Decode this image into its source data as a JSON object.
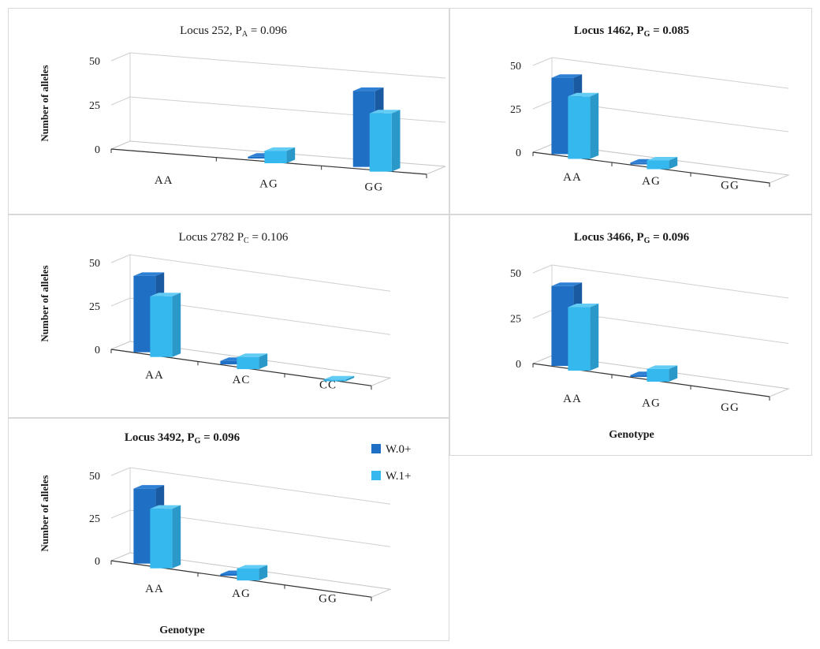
{
  "colors": {
    "w0": "#1f6fc4",
    "w0_side": "#1a5aa0",
    "w0_top": "#2e80d4",
    "w1": "#35b8ee",
    "w1_side": "#2a98c8",
    "w1_top": "#63ccf4"
  },
  "legend": {
    "w0": "W.0+",
    "w1": "W.1+"
  },
  "chart_data": [
    {
      "type": "bar",
      "title": {
        "main": "Locus 252,  P",
        "sub": "A",
        "eq": " = 0.096"
      },
      "title_bold": false,
      "ylabel": "Number of alleles",
      "xlabel": "",
      "categories": [
        "AA",
        "AG",
        "GG"
      ],
      "yticks": [
        "0",
        "25",
        "50"
      ],
      "ylim": [
        0,
        50
      ],
      "series": [
        {
          "name": "W.0+",
          "values": [
            0,
            1,
            43
          ]
        },
        {
          "name": "W.1+",
          "values": [
            0,
            7,
            33
          ]
        }
      ]
    },
    {
      "type": "bar",
      "title": {
        "main": "Locus 1462,  P",
        "sub": "G",
        "eq": " = 0.085"
      },
      "title_bold": true,
      "ylabel": "",
      "xlabel": "",
      "categories": [
        "AA",
        "AG",
        "GG"
      ],
      "yticks": [
        "0",
        "25",
        "50"
      ],
      "ylim": [
        0,
        50
      ],
      "series": [
        {
          "name": "W.0+",
          "values": [
            44,
            1,
            0
          ]
        },
        {
          "name": "W.1+",
          "values": [
            36,
            5,
            0
          ]
        }
      ]
    },
    {
      "type": "bar",
      "title": {
        "main": "Locus 2782 P",
        "sub": "C",
        "eq": " = 0.106"
      },
      "title_bold": false,
      "ylabel": "Number of alleles",
      "xlabel": "",
      "categories": [
        "AA",
        "AC",
        "CC"
      ],
      "yticks": [
        "0",
        "25",
        "50"
      ],
      "ylim": [
        0,
        50
      ],
      "series": [
        {
          "name": "W.0+",
          "values": [
            44,
            2,
            0
          ]
        },
        {
          "name": "W.1+",
          "values": [
            35,
            7,
            1
          ]
        }
      ]
    },
    {
      "type": "bar",
      "title": {
        "main": "Locus 3466,  P",
        "sub": "G",
        "eq": " = 0.096"
      },
      "title_bold": true,
      "ylabel": "",
      "xlabel": "Genotype",
      "categories": [
        "AA",
        "AG",
        "GG"
      ],
      "yticks": [
        "0",
        "25",
        "50"
      ],
      "ylim": [
        0,
        50
      ],
      "series": [
        {
          "name": "W.0+",
          "values": [
            44,
            1,
            0
          ]
        },
        {
          "name": "W.1+",
          "values": [
            35,
            7,
            0
          ]
        }
      ]
    },
    {
      "type": "bar",
      "title": {
        "main": "Locus 3492,  P",
        "sub": "G",
        "eq": " = 0.096"
      },
      "title_bold": true,
      "ylabel": "Number of alleles",
      "xlabel": "Genotype",
      "categories": [
        "AA",
        "AG",
        "GG"
      ],
      "yticks": [
        "0",
        "25",
        "50"
      ],
      "ylim": [
        0,
        50
      ],
      "series": [
        {
          "name": "W.0+",
          "values": [
            44,
            1,
            0
          ]
        },
        {
          "name": "W.1+",
          "values": [
            35,
            7,
            0
          ]
        }
      ]
    }
  ]
}
